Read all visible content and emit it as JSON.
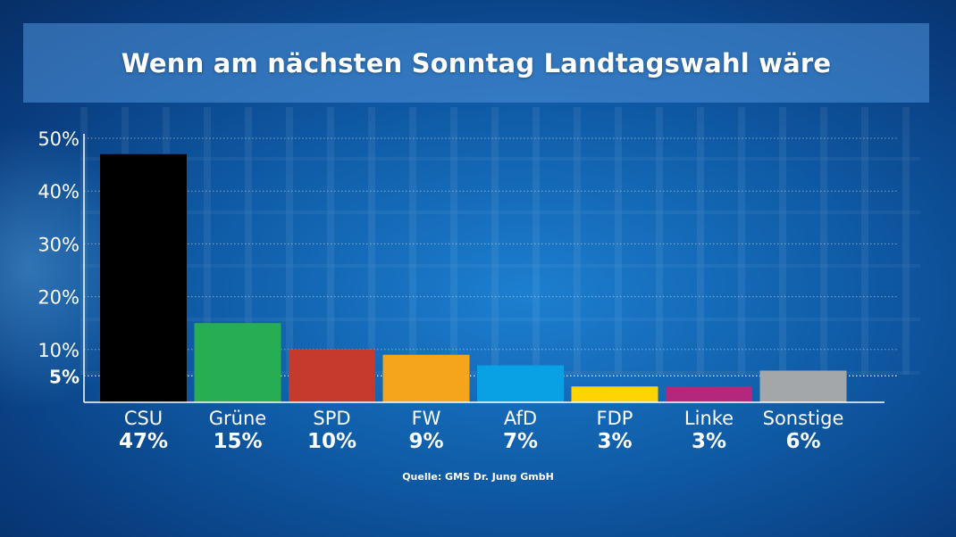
{
  "title": "Wenn am nächsten Sonntag Landtagswahl wäre",
  "source": "Quelle: GMS Dr. Jung GmbH",
  "chart_data": {
    "type": "bar",
    "title": "Wenn am nächsten Sonntag Landtagswahl wäre",
    "xlabel": "",
    "ylabel": "",
    "ylim": [
      0,
      50
    ],
    "yticks": [
      {
        "value": 50,
        "label": "50%"
      },
      {
        "value": 40,
        "label": "40%"
      },
      {
        "value": 30,
        "label": "30%"
      },
      {
        "value": 20,
        "label": "20%"
      },
      {
        "value": 10,
        "label": "10%"
      },
      {
        "value": 5,
        "label": "5%"
      }
    ],
    "grid": true,
    "categories": [
      "CSU",
      "Grüne",
      "SPD",
      "FW",
      "AfD",
      "FDP",
      "Linke",
      "Sonstige"
    ],
    "values": [
      47,
      15,
      10,
      9,
      7,
      3,
      3,
      6
    ],
    "value_labels": [
      "47%",
      "15%",
      "10%",
      "9%",
      "7%",
      "3%",
      "3%",
      "6%"
    ],
    "colors": [
      "#000000",
      "#27ae52",
      "#c53a2c",
      "#f4a51c",
      "#0aa0e4",
      "#ffd400",
      "#b3277d",
      "#a4a7a9"
    ],
    "highlight_line": 5
  }
}
